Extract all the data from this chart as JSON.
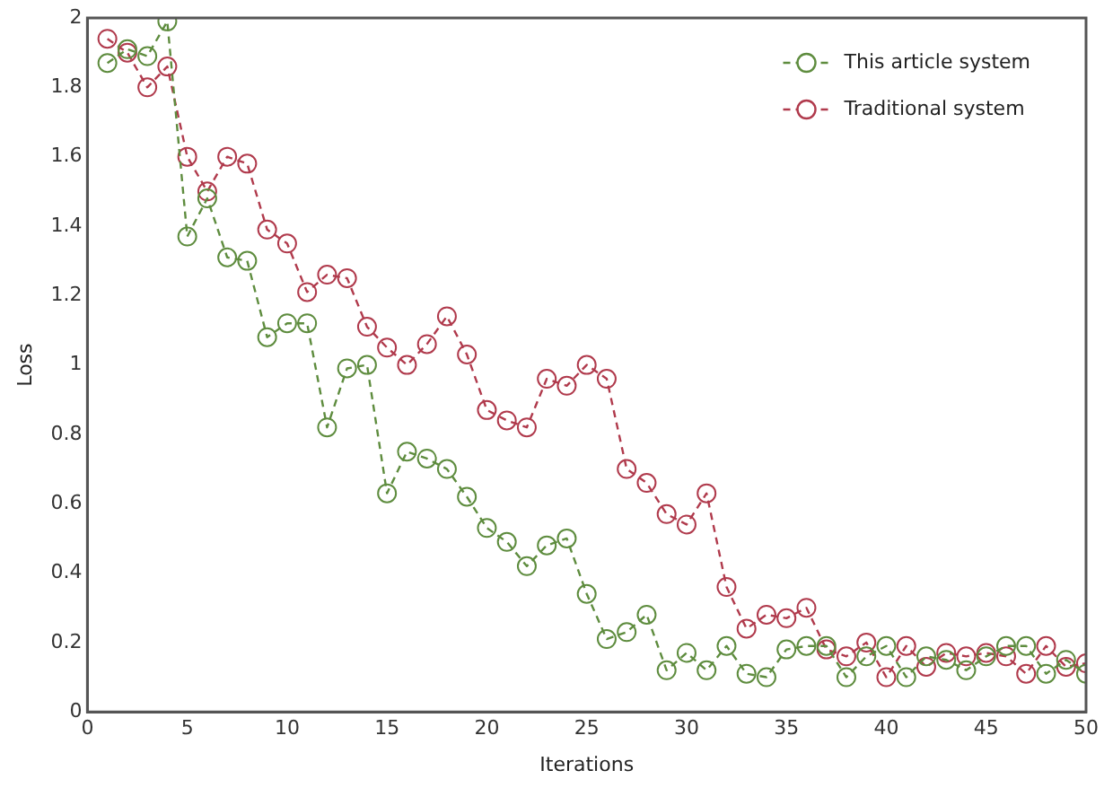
{
  "chart_data": {
    "type": "line",
    "xlabel": "Iterations",
    "ylabel": "Loss",
    "x": [
      1,
      2,
      3,
      4,
      5,
      6,
      7,
      8,
      9,
      10,
      11,
      12,
      13,
      14,
      15,
      16,
      17,
      18,
      19,
      20,
      21,
      22,
      23,
      24,
      25,
      26,
      27,
      28,
      29,
      30,
      31,
      32,
      33,
      34,
      35,
      36,
      37,
      38,
      39,
      40,
      41,
      42,
      43,
      44,
      45,
      46,
      47,
      48,
      49,
      50
    ],
    "series": [
      {
        "name": "This article system",
        "color": "#5e8c3e",
        "values": [
          1.87,
          1.91,
          1.89,
          1.99,
          1.37,
          1.48,
          1.31,
          1.3,
          1.08,
          1.12,
          1.12,
          0.82,
          0.99,
          1.0,
          0.63,
          0.75,
          0.73,
          0.7,
          0.62,
          0.53,
          0.49,
          0.42,
          0.48,
          0.5,
          0.34,
          0.21,
          0.23,
          0.28,
          0.12,
          0.17,
          0.12,
          0.19,
          0.11,
          0.1,
          0.18,
          0.19,
          0.19,
          0.1,
          0.16,
          0.19,
          0.1,
          0.16,
          0.15,
          0.12,
          0.16,
          0.19,
          0.19,
          0.11,
          0.15,
          0.11
        ]
      },
      {
        "name": "Traditional system",
        "color": "#b03a4c",
        "values": [
          1.94,
          1.9,
          1.8,
          1.86,
          1.6,
          1.5,
          1.6,
          1.58,
          1.39,
          1.35,
          1.21,
          1.26,
          1.25,
          1.11,
          1.05,
          1.0,
          1.06,
          1.14,
          1.03,
          0.87,
          0.84,
          0.82,
          0.96,
          0.94,
          1.0,
          0.96,
          0.7,
          0.66,
          0.57,
          0.54,
          0.63,
          0.36,
          0.24,
          0.28,
          0.27,
          0.3,
          0.18,
          0.16,
          0.2,
          0.1,
          0.19,
          0.13,
          0.17,
          0.16,
          0.17,
          0.16,
          0.11,
          0.19,
          0.13,
          0.14
        ]
      }
    ],
    "xlim": [
      0,
      50
    ],
    "xticks": [
      0,
      5,
      10,
      15,
      20,
      25,
      30,
      35,
      40,
      45,
      50
    ],
    "ylim": [
      0,
      2
    ],
    "yticks": [
      0,
      0.2,
      0.4,
      0.6,
      0.8,
      1,
      1.2,
      1.4,
      1.6,
      1.8,
      2
    ],
    "grid": false,
    "legend": "top right",
    "marker": "circle",
    "line_style": "dashed"
  }
}
